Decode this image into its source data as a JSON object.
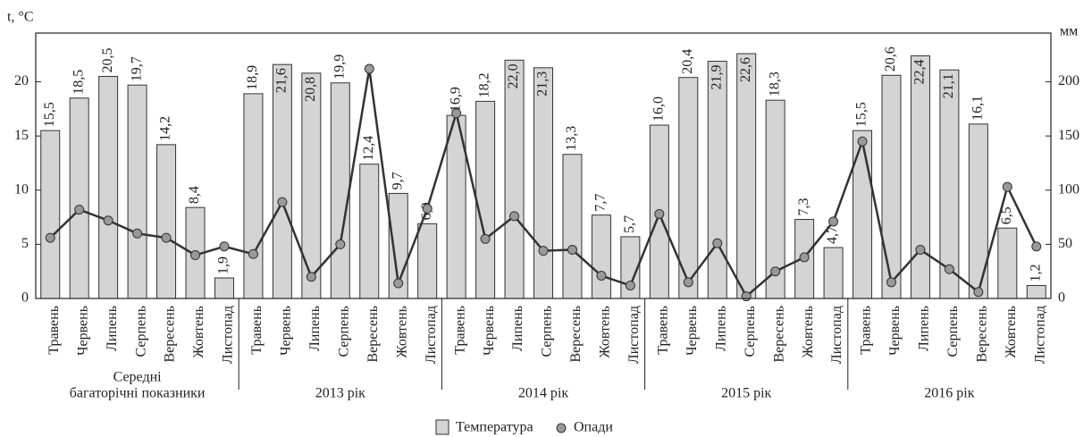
{
  "chart_data": {
    "type": "bar",
    "y_label": "t, °C",
    "y2_label": "мм",
    "categories": [
      "Травень",
      "Червень",
      "Липень",
      "Серпень",
      "Вересень",
      "Жовтень",
      "Листопад",
      "Травень",
      "Червень",
      "Липень",
      "Серпень",
      "Вересень",
      "Жовтень",
      "Листопад",
      "Травень",
      "Червень",
      "Липень",
      "Серпень",
      "Вересень",
      "Жовтень",
      "Листопад",
      "Травень",
      "Червень",
      "Липень",
      "Серпень",
      "Вересень",
      "Жовтень",
      "Листопад",
      "Травень",
      "Червень",
      "Липень",
      "Серпень",
      "Вересень",
      "Жовтень",
      "Листопад"
    ],
    "groups": [
      [
        "Середні",
        "багаторічні показники"
      ],
      [
        "2013 рік"
      ],
      [
        "2014 рік"
      ],
      [
        "2015 рік"
      ],
      [
        "2016 рік"
      ]
    ],
    "series": [
      {
        "name": "Температура",
        "type": "bar",
        "color": "#d4d4d4",
        "values": [
          15.5,
          18.5,
          20.5,
          19.7,
          14.2,
          8.4,
          1.9,
          18.9,
          21.6,
          20.8,
          19.9,
          12.4,
          9.7,
          6.9,
          16.9,
          18.2,
          22.0,
          21.3,
          13.3,
          7.7,
          5.7,
          16.0,
          20.4,
          21.9,
          22.6,
          18.3,
          7.3,
          4.7,
          15.5,
          20.6,
          22.4,
          21.1,
          16.1,
          6.5,
          1.2
        ],
        "value_labels": [
          "15,5",
          "18,5",
          "20,5",
          "19,7",
          "14,2",
          "8,4",
          "1,9",
          "18,9",
          "21,6",
          "20,8",
          "19,9",
          "12,4",
          "9,7",
          "6,9",
          "16,9",
          "18,2",
          "22,0",
          "21,3",
          "13,3",
          "7,7",
          "5,7",
          "16,0",
          "20,4",
          "21,9",
          "22,6",
          "18,3",
          "7,3",
          "4,7",
          "15,5",
          "20,6",
          "22,4",
          "21,1",
          "16,1",
          "6,5",
          "1,2"
        ]
      },
      {
        "name": "Опади",
        "type": "line",
        "axis": "y2",
        "color": "#999999",
        "values": [
          56,
          82,
          72,
          60,
          56,
          40,
          48,
          41,
          89,
          20,
          50,
          212,
          14,
          83,
          171,
          55,
          76,
          44,
          45,
          21,
          12,
          78,
          15,
          51,
          2,
          25,
          38,
          71,
          145,
          15,
          45,
          27,
          6,
          103,
          48
        ]
      }
    ],
    "ylim": [
      0,
      24.5
    ],
    "yticks": [
      0,
      5,
      10,
      15,
      20
    ],
    "y2lim": [
      0,
      245
    ],
    "y2ticks": [
      0,
      50,
      100,
      150,
      200
    ]
  }
}
